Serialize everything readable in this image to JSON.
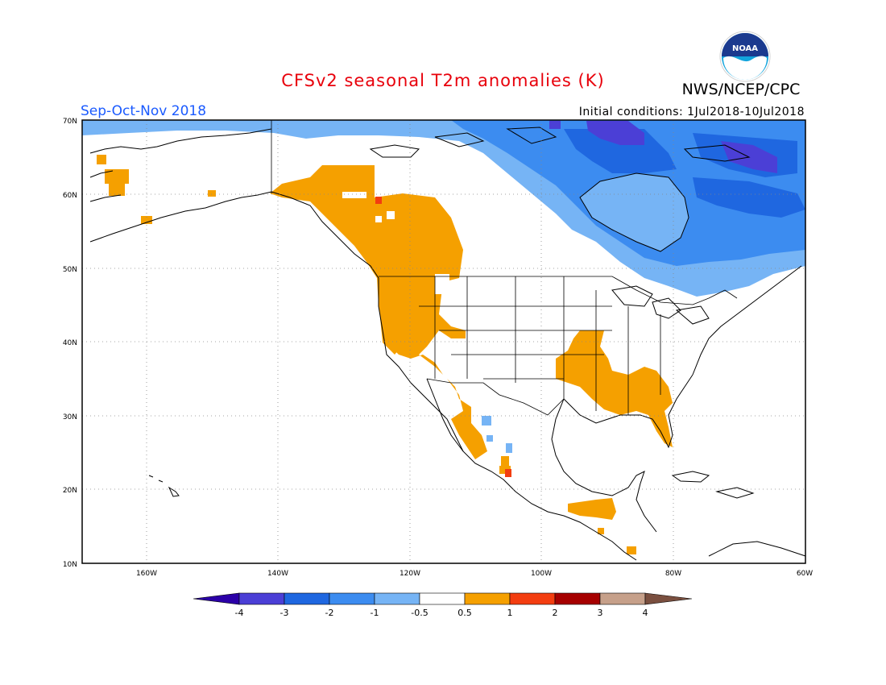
{
  "header": {
    "title": "CFSv2 seasonal T2m anomalies (K)",
    "org": "NWS/NCEP/CPC",
    "season": "Sep-Oct-Nov 2018",
    "initial_conditions": "Initial conditions: 1Jul2018-10Jul2018",
    "logo_text": "NOAA"
  },
  "axes": {
    "lat_ticks": [
      "70N",
      "60N",
      "50N",
      "40N",
      "30N",
      "20N",
      "10N"
    ],
    "lon_ticks": [
      "160W",
      "140W",
      "120W",
      "100W",
      "80W",
      "60W"
    ]
  },
  "colorbar": {
    "labels": [
      "-4",
      "-3",
      "-2",
      "-1",
      "-0.5",
      "0.5",
      "1",
      "2",
      "3",
      "4"
    ],
    "colors": [
      "#2b00a8",
      "#4b3fd6",
      "#1f67e0",
      "#3c8cf0",
      "#76b4f5",
      "#ffffff",
      "#f5a000",
      "#f33d10",
      "#a60000",
      "#c6a08a",
      "#7a4f3f"
    ]
  },
  "colors": {
    "title": "#e8000b",
    "season": "#1a5aff",
    "warm": "#f5a000",
    "warm_strong": "#f33d10",
    "cool": "#76b4f5",
    "cool_mid": "#3c8cf0",
    "cool_strong": "#1f67e0",
    "cold": "#4b3fd6"
  }
}
